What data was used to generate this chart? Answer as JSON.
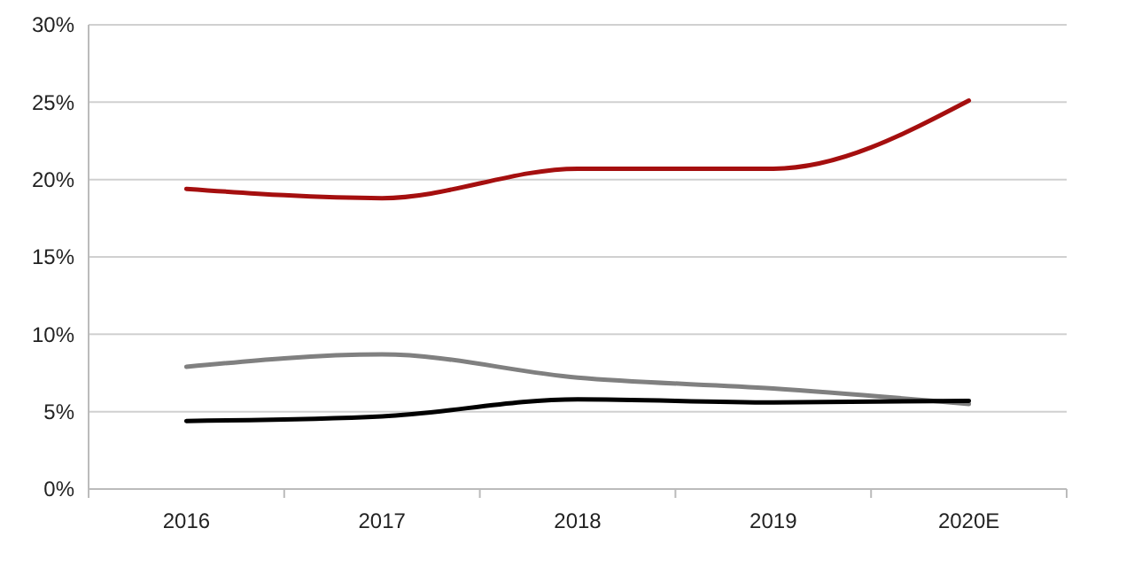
{
  "chart_data": {
    "type": "line",
    "categories": [
      "2016",
      "2017",
      "2018",
      "2019",
      "2020E"
    ],
    "series": [
      {
        "color": "#a50f0f",
        "values": [
          19.4,
          18.8,
          20.7,
          20.7,
          25.1
        ]
      },
      {
        "color": "#808080",
        "values": [
          7.9,
          8.7,
          7.2,
          6.5,
          5.5
        ]
      },
      {
        "color": "#000000",
        "values": [
          4.4,
          4.7,
          5.8,
          5.6,
          5.7
        ]
      }
    ],
    "ylim": [
      0,
      30
    ],
    "yticks": [
      {
        "value": 0,
        "label": "0%"
      },
      {
        "value": 5,
        "label": "5%"
      },
      {
        "value": 10,
        "label": "10%"
      },
      {
        "value": 15,
        "label": "15%"
      },
      {
        "value": 20,
        "label": "20%"
      },
      {
        "value": 25,
        "label": "25%"
      },
      {
        "value": 30,
        "label": "30%"
      }
    ],
    "grid": "y",
    "marker": "none",
    "line_style": "solid"
  }
}
